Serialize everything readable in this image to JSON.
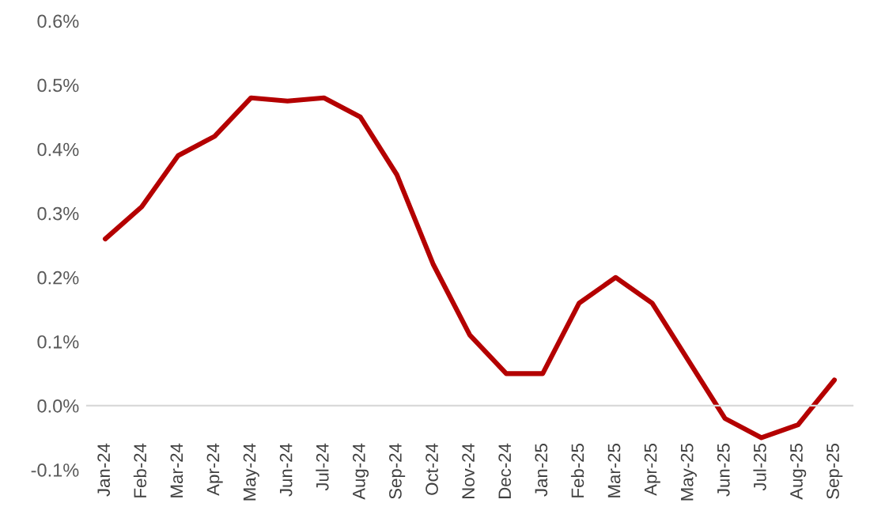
{
  "chart_data": {
    "type": "line",
    "categories": [
      "Jan-24",
      "Feb-24",
      "Mar-24",
      "Apr-24",
      "May-24",
      "Jun-24",
      "Jul-24",
      "Aug-24",
      "Sep-24",
      "Oct-24",
      "Nov-24",
      "Dec-24",
      "Jan-25",
      "Feb-25",
      "Mar-25",
      "Apr-25",
      "May-25",
      "Jun-25",
      "Jul-25",
      "Aug-25",
      "Sep-25"
    ],
    "series": [
      {
        "color": "#b40000",
        "values": [
          0.26,
          0.31,
          0.39,
          0.42,
          0.48,
          0.475,
          0.48,
          0.45,
          0.36,
          0.22,
          0.11,
          0.05,
          0.05,
          0.16,
          0.2,
          0.16,
          0.07,
          -0.02,
          -0.05,
          -0.03,
          0.04
        ]
      }
    ],
    "ylim": [
      -0.1,
      0.6
    ],
    "yticks": [
      {
        "value": -0.1,
        "label": "-0.1%"
      },
      {
        "value": 0,
        "label": "0.0%"
      },
      {
        "value": 0.1,
        "label": "0.1%"
      },
      {
        "value": 0.2,
        "label": "0.2%"
      },
      {
        "value": 0.3,
        "label": "0.3%"
      },
      {
        "value": 0.4,
        "label": "0.4%"
      },
      {
        "value": 0.5,
        "label": "0.5%"
      },
      {
        "value": 0.6,
        "label": "0.6%"
      }
    ],
    "grid": false,
    "legend": false,
    "marker": "none",
    "line_style": "solid"
  }
}
